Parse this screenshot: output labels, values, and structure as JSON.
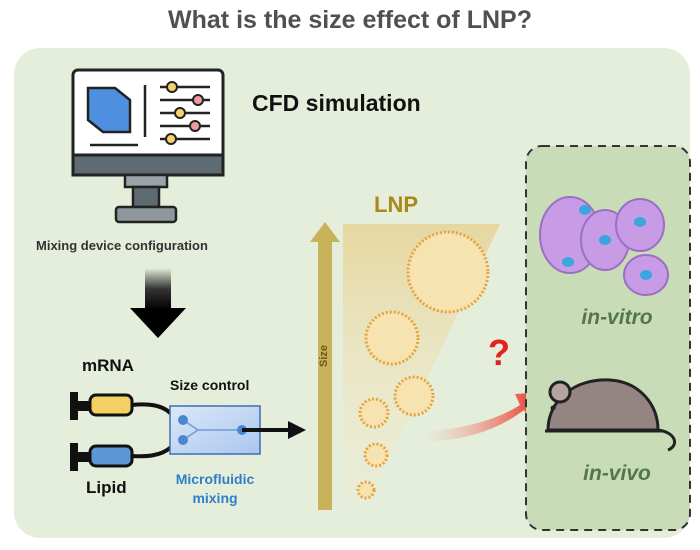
{
  "title": "What is the size effect of LNP?",
  "cfd_label": "CFD simulation",
  "mixing_device_label": "Mixing device configuration",
  "mrna_label": "mRNA",
  "lipid_label": "Lipid",
  "size_control_label": "Size control",
  "microfluidic_label": "Microfluidic mixing",
  "lnp_label": "LNP",
  "size_axis_label": "Size",
  "question_mark": "?",
  "in_vitro_label": "in-vitro",
  "in_vivo_label": "in-vivo",
  "colors": {
    "panel": "#e4eedb",
    "target_box": "#c8dcb8",
    "accent_blue": "#2f7fc3",
    "gold": "#c8b25a",
    "red": "#e0231e"
  },
  "icons": [
    "monitor-icon",
    "syringe-icon",
    "microfluidic-chip-icon",
    "cell-icon",
    "mouse-icon",
    "nanoparticle-icon"
  ]
}
